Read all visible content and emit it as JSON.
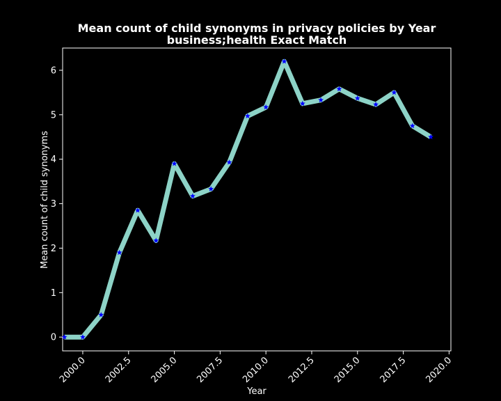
{
  "chart_data": {
    "type": "line",
    "title": "Mean count of child synonyms in privacy policies by Year",
    "subtitle": "business;health Exact Match",
    "xlabel": "Year",
    "ylabel": "Mean count of child synonyms",
    "xlim": [
      1998.9,
      2020.1
    ],
    "ylim": [
      -0.31,
      6.5
    ],
    "xticks": [
      2000.0,
      2002.5,
      2005.0,
      2007.5,
      2010.0,
      2012.5,
      2015.0,
      2017.5,
      2020.0
    ],
    "xtick_labels": [
      "2000.0",
      "2002.5",
      "2005.0",
      "2007.5",
      "2010.0",
      "2012.5",
      "2015.0",
      "2017.5",
      "2020.0"
    ],
    "yticks": [
      0,
      1,
      2,
      3,
      4,
      5,
      6
    ],
    "ytick_labels": [
      "0",
      "1",
      "2",
      "3",
      "4",
      "5",
      "6"
    ],
    "grid": false,
    "line_color": "#8dd3c7",
    "marker_color": "#0000ff",
    "marker": "star",
    "x": [
      1999,
      2000,
      2001,
      2002,
      2003,
      2004,
      2005,
      2006,
      2007,
      2008,
      2009,
      2010,
      2011,
      2012,
      2013,
      2014,
      2015,
      2016,
      2017,
      2018,
      2019
    ],
    "y": [
      0.0,
      0.0,
      0.5,
      1.9,
      2.85,
      2.17,
      3.9,
      3.17,
      3.33,
      3.93,
      4.97,
      5.17,
      6.2,
      5.25,
      5.33,
      5.58,
      5.37,
      5.23,
      5.5,
      4.75,
      4.5
    ]
  }
}
